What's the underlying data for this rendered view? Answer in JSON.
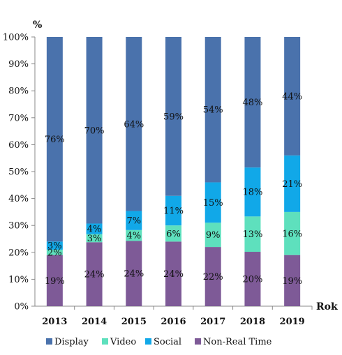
{
  "chart_data": {
    "type": "bar",
    "stacked": true,
    "percent_stacked": true,
    "categories": [
      "2013",
      "2014",
      "2015",
      "2016",
      "2017",
      "2018",
      "2019"
    ],
    "series": [
      {
        "name": "Non-Real Time",
        "color": "#7e5a97",
        "values": [
          19,
          24,
          24,
          24,
          22,
          20,
          19
        ],
        "labels": [
          "19%",
          "24%",
          "24%",
          "24%",
          "22%",
          "20%",
          "19%"
        ]
      },
      {
        "name": "Video",
        "color": "#5ee0bd",
        "values": [
          2,
          3,
          4,
          6,
          9,
          13,
          16
        ],
        "labels": [
          "2%",
          "3%",
          "4%",
          "6%",
          "9%",
          "13%",
          "16%"
        ]
      },
      {
        "name": "Social",
        "color": "#11a8e8",
        "values": [
          3,
          4,
          7,
          11,
          15,
          18,
          21
        ],
        "labels": [
          "3%",
          "4%",
          "7%",
          "11%",
          "15%",
          "18%",
          "21%"
        ]
      },
      {
        "name": "Display",
        "color": "#4a72ac",
        "values": [
          76,
          70,
          64,
          59,
          54,
          48,
          44
        ],
        "labels": [
          "76%",
          "70%",
          "64%",
          "59%",
          "54%",
          "48%",
          "44%"
        ]
      }
    ],
    "legend_order": [
      "Display",
      "Video",
      "Social",
      "Non-Real Time"
    ],
    "ylabel": "%",
    "xlabel": "Rok",
    "ylim": [
      0,
      100
    ],
    "yticks": [
      "0%",
      "10%",
      "20%",
      "30%",
      "40%",
      "50%",
      "60%",
      "70%",
      "80%",
      "90%",
      "100%"
    ],
    "grid": false,
    "legend_position": "bottom"
  }
}
